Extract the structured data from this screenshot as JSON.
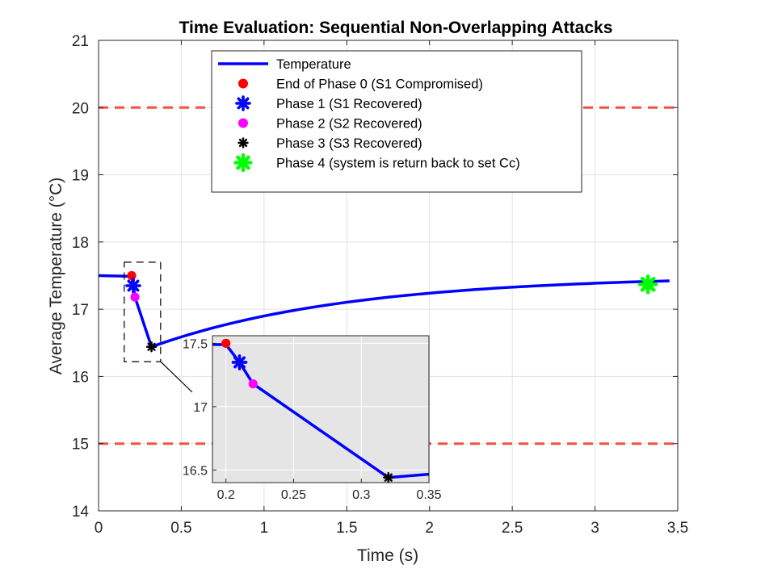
{
  "chart_data": {
    "type": "line",
    "title": "Time Evaluation: Sequential Non-Overlapping Attacks",
    "xlabel": "Time (s)",
    "ylabel": "Average Temperature (°C)",
    "xlim": [
      0,
      3.5
    ],
    "ylim": [
      14,
      21
    ],
    "xticks": [
      "0",
      "0.5",
      "1",
      "1.5",
      "2",
      "2.5",
      "3",
      "3.5"
    ],
    "yticks": [
      "14",
      "15",
      "16",
      "17",
      "18",
      "19",
      "20",
      "21"
    ],
    "grid": true,
    "legend_position": "top-center",
    "thresholds": [
      {
        "y": 20,
        "color": "#f0524a",
        "style": "dashed"
      },
      {
        "y": 15,
        "color": "#f0524a",
        "style": "dashed"
      }
    ],
    "temperature_line": {
      "name": "Temperature",
      "color": "#0000ff",
      "recovery": {
        "start": 0.32,
        "y0": 16.44,
        "target": 17.5,
        "tau": 1.2,
        "end": 3.45
      },
      "points": [
        [
          0,
          17.5
        ],
        [
          0.2,
          17.49
        ],
        [
          0.21,
          17.35
        ],
        [
          0.22,
          17.18
        ],
        [
          0.32,
          16.44
        ]
      ]
    },
    "markers": [
      {
        "name": "End of Phase 0 (S1 Compromised)",
        "x": 0.2,
        "y": 17.5,
        "shape": "circle",
        "color": "#ff0000"
      },
      {
        "name": "Phase 1 (S1 Recovered)",
        "x": 0.21,
        "y": 17.35,
        "shape": "asterisk",
        "color": "#0000ff"
      },
      {
        "name": "Phase 2 (S2 Recovered)",
        "x": 0.22,
        "y": 17.18,
        "shape": "circle",
        "color": "#ff00ff"
      },
      {
        "name": "Phase 3 (S3 Recovered)",
        "x": 0.32,
        "y": 16.44,
        "shape": "asterisk",
        "color": "#000000"
      },
      {
        "name": "Phase 4 (system is return back to set Cc)",
        "x": 3.32,
        "y": 17.37,
        "shape": "asterisk",
        "color": "#00ff00"
      }
    ],
    "inset": {
      "xlim": [
        0.19,
        0.35
      ],
      "ylim": [
        16.4,
        17.56
      ],
      "xticks": [
        "0.2",
        "0.25",
        "0.3",
        "0.35"
      ],
      "yticks": [
        "16.5",
        "17",
        "17.5"
      ],
      "background": "#e5e5e5",
      "zoom_box": {
        "x": [
          0.155,
          0.375
        ],
        "y": [
          16.22,
          17.7
        ]
      }
    }
  }
}
